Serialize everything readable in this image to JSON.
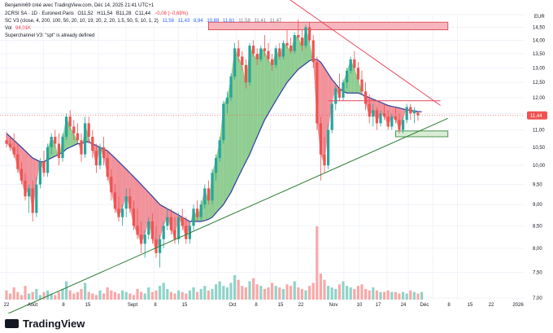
{
  "header": {
    "credit": "Benjamin69 créé avec TradingView.com, Déc 14, 2025 21:41 UTC+1",
    "symbol_line": "2CRSI SA · 1D · Euronext Paris",
    "ohlc": [
      "O11,52",
      "H11,54",
      "B11,28",
      "C11,44",
      "−0,08 (−0,69%)"
    ],
    "scv3_label": "SC V3 (close, 4, 200, 100, 50, 20, 10, 19, 20, 2, 20, 1.5, 50, 5, 10, 1, 2)",
    "scv3_values": [
      "11,56",
      "11,43",
      "8,94",
      "10,69",
      "11,61",
      "11,58",
      "11,41",
      "11,47"
    ],
    "vol_label": "Vol",
    "vol_value": "94,01K",
    "superchannel": "Superchannel V3: \"spt\" is already defined"
  },
  "currency": "EUR",
  "last_price_label": "11,44",
  "watermark": "TradingView",
  "colors": {
    "up": "#26a69a",
    "down": "#ef5350",
    "fill_up": "#7cc47f",
    "fill_down": "#ef7f8a",
    "ma_line": "#2e3fa0",
    "resistance_line": "#e8475b",
    "support_line": "#2e7d32",
    "zone_red": "#f7b6bd",
    "zone_green": "#d8edd3",
    "vol_up": "#8fd3c9",
    "vol_down": "#f7a9a8"
  },
  "chart_data": {
    "type": "candlestick",
    "y_axis": {
      "ticks": [
        "15,00",
        "14,50",
        "14,00",
        "13,50",
        "13,00",
        "12,50",
        "12,00",
        "11,50",
        "11,00",
        "10,50",
        "10,00",
        "9,50",
        "9,00",
        "8,50",
        "8,00",
        "7,50",
        "7,00"
      ],
      "min": 7.0,
      "max": 15.0,
      "scale": "log"
    },
    "x_axis": {
      "ticks": [
        "22",
        "Août",
        "8",
        "15",
        "Sept",
        "8",
        "15",
        "Oct",
        "8",
        "15",
        "22",
        "Nov",
        "10",
        "17",
        "24",
        "Déc",
        "8",
        "15",
        "22",
        "2026"
      ]
    },
    "candles": [
      {
        "o": 10.7,
        "h": 10.95,
        "l": 10.5,
        "c": 10.6
      },
      {
        "o": 10.6,
        "h": 10.8,
        "l": 10.4,
        "c": 10.5
      },
      {
        "o": 10.5,
        "h": 10.9,
        "l": 10.2,
        "c": 10.3
      },
      {
        "o": 10.3,
        "h": 10.6,
        "l": 9.8,
        "c": 9.9
      },
      {
        "o": 9.9,
        "h": 10.1,
        "l": 9.5,
        "c": 9.6
      },
      {
        "o": 9.6,
        "h": 9.8,
        "l": 9.1,
        "c": 9.2
      },
      {
        "o": 9.2,
        "h": 9.5,
        "l": 8.8,
        "c": 9.4
      },
      {
        "o": 9.4,
        "h": 9.6,
        "l": 8.6,
        "c": 8.8
      },
      {
        "o": 8.8,
        "h": 9.7,
        "l": 8.7,
        "c": 9.5
      },
      {
        "o": 9.5,
        "h": 10.2,
        "l": 9.4,
        "c": 10.1
      },
      {
        "o": 10.1,
        "h": 10.4,
        "l": 9.7,
        "c": 9.8
      },
      {
        "o": 9.8,
        "h": 10.6,
        "l": 9.7,
        "c": 10.5
      },
      {
        "o": 10.5,
        "h": 10.9,
        "l": 10.3,
        "c": 10.8
      },
      {
        "o": 10.8,
        "h": 11.0,
        "l": 10.5,
        "c": 10.6
      },
      {
        "o": 10.6,
        "h": 10.9,
        "l": 10.0,
        "c": 10.2
      },
      {
        "o": 10.2,
        "h": 10.9,
        "l": 10.1,
        "c": 10.8
      },
      {
        "o": 10.8,
        "h": 11.5,
        "l": 10.7,
        "c": 11.4
      },
      {
        "o": 11.4,
        "h": 11.6,
        "l": 11.0,
        "c": 11.1
      },
      {
        "o": 11.1,
        "h": 11.3,
        "l": 10.7,
        "c": 10.9
      },
      {
        "o": 10.9,
        "h": 11.2,
        "l": 10.6,
        "c": 10.7
      },
      {
        "o": 10.7,
        "h": 10.9,
        "l": 10.1,
        "c": 10.3
      },
      {
        "o": 10.3,
        "h": 11.4,
        "l": 10.2,
        "c": 11.2
      },
      {
        "o": 11.2,
        "h": 11.4,
        "l": 10.6,
        "c": 10.8
      },
      {
        "o": 10.8,
        "h": 11.0,
        "l": 10.2,
        "c": 10.4
      },
      {
        "o": 10.4,
        "h": 10.6,
        "l": 9.8,
        "c": 10.0
      },
      {
        "o": 10.0,
        "h": 10.6,
        "l": 9.9,
        "c": 10.5
      },
      {
        "o": 10.5,
        "h": 10.8,
        "l": 10.0,
        "c": 10.2
      },
      {
        "o": 10.2,
        "h": 10.4,
        "l": 9.6,
        "c": 9.7
      },
      {
        "o": 9.7,
        "h": 9.9,
        "l": 9.1,
        "c": 9.3
      },
      {
        "o": 9.3,
        "h": 9.5,
        "l": 8.8,
        "c": 8.9
      },
      {
        "o": 8.9,
        "h": 9.2,
        "l": 8.6,
        "c": 8.7
      },
      {
        "o": 8.7,
        "h": 9.0,
        "l": 8.5,
        "c": 8.9
      },
      {
        "o": 8.9,
        "h": 9.4,
        "l": 8.7,
        "c": 9.2
      },
      {
        "o": 9.2,
        "h": 9.4,
        "l": 8.8,
        "c": 8.9
      },
      {
        "o": 8.9,
        "h": 9.1,
        "l": 8.4,
        "c": 8.5
      },
      {
        "o": 8.5,
        "h": 8.9,
        "l": 8.2,
        "c": 8.3
      },
      {
        "o": 8.3,
        "h": 8.6,
        "l": 7.9,
        "c": 8.1
      },
      {
        "o": 8.1,
        "h": 8.4,
        "l": 7.8,
        "c": 8.3
      },
      {
        "o": 8.3,
        "h": 8.7,
        "l": 8.2,
        "c": 8.6
      },
      {
        "o": 8.6,
        "h": 8.8,
        "l": 8.1,
        "c": 8.2
      },
      {
        "o": 8.2,
        "h": 8.5,
        "l": 7.8,
        "c": 7.9
      },
      {
        "o": 7.9,
        "h": 8.3,
        "l": 7.6,
        "c": 8.2
      },
      {
        "o": 8.2,
        "h": 8.6,
        "l": 8.0,
        "c": 8.5
      },
      {
        "o": 8.5,
        "h": 8.9,
        "l": 8.4,
        "c": 8.7
      },
      {
        "o": 8.7,
        "h": 8.9,
        "l": 8.3,
        "c": 8.4
      },
      {
        "o": 8.4,
        "h": 8.7,
        "l": 8.1,
        "c": 8.2
      },
      {
        "o": 8.2,
        "h": 8.8,
        "l": 8.1,
        "c": 8.7
      },
      {
        "o": 8.7,
        "h": 8.9,
        "l": 8.4,
        "c": 8.5
      },
      {
        "o": 8.5,
        "h": 8.7,
        "l": 8.1,
        "c": 8.2
      },
      {
        "o": 8.2,
        "h": 8.6,
        "l": 8.1,
        "c": 8.5
      },
      {
        "o": 8.5,
        "h": 9.0,
        "l": 8.4,
        "c": 8.9
      },
      {
        "o": 8.9,
        "h": 9.1,
        "l": 8.6,
        "c": 8.7
      },
      {
        "o": 8.7,
        "h": 9.1,
        "l": 8.6,
        "c": 9.0
      },
      {
        "o": 9.0,
        "h": 9.5,
        "l": 8.9,
        "c": 9.4
      },
      {
        "o": 9.4,
        "h": 9.6,
        "l": 9.0,
        "c": 9.1
      },
      {
        "o": 9.1,
        "h": 9.9,
        "l": 9.0,
        "c": 9.8
      },
      {
        "o": 9.8,
        "h": 10.3,
        "l": 9.6,
        "c": 10.2
      },
      {
        "o": 10.2,
        "h": 10.8,
        "l": 10.1,
        "c": 10.7
      },
      {
        "o": 10.7,
        "h": 11.9,
        "l": 10.6,
        "c": 11.8
      },
      {
        "o": 11.8,
        "h": 12.2,
        "l": 11.5,
        "c": 12.0
      },
      {
        "o": 12.0,
        "h": 12.8,
        "l": 11.9,
        "c": 12.7
      },
      {
        "o": 12.7,
        "h": 13.9,
        "l": 12.6,
        "c": 13.7
      },
      {
        "o": 13.7,
        "h": 14.0,
        "l": 13.2,
        "c": 13.4
      },
      {
        "o": 13.4,
        "h": 13.6,
        "l": 12.9,
        "c": 13.1
      },
      {
        "o": 13.1,
        "h": 13.3,
        "l": 12.3,
        "c": 12.5
      },
      {
        "o": 12.5,
        "h": 13.9,
        "l": 12.4,
        "c": 13.8
      },
      {
        "o": 13.8,
        "h": 14.0,
        "l": 13.4,
        "c": 13.5
      },
      {
        "o": 13.5,
        "h": 13.7,
        "l": 13.1,
        "c": 13.3
      },
      {
        "o": 13.3,
        "h": 13.8,
        "l": 13.2,
        "c": 13.7
      },
      {
        "o": 13.7,
        "h": 14.2,
        "l": 13.4,
        "c": 13.6
      },
      {
        "o": 13.6,
        "h": 13.9,
        "l": 13.2,
        "c": 13.3
      },
      {
        "o": 13.3,
        "h": 13.5,
        "l": 12.9,
        "c": 13.1
      },
      {
        "o": 13.1,
        "h": 13.8,
        "l": 13.0,
        "c": 13.7
      },
      {
        "o": 13.7,
        "h": 13.9,
        "l": 13.3,
        "c": 13.4
      },
      {
        "o": 13.4,
        "h": 14.0,
        "l": 13.3,
        "c": 13.9
      },
      {
        "o": 13.9,
        "h": 14.4,
        "l": 13.7,
        "c": 13.8
      },
      {
        "o": 13.8,
        "h": 14.1,
        "l": 13.5,
        "c": 13.6
      },
      {
        "o": 13.6,
        "h": 14.3,
        "l": 13.5,
        "c": 14.2
      },
      {
        "o": 14.2,
        "h": 14.8,
        "l": 14.0,
        "c": 14.1
      },
      {
        "o": 14.1,
        "h": 14.4,
        "l": 13.6,
        "c": 13.8
      },
      {
        "o": 13.8,
        "h": 14.6,
        "l": 13.7,
        "c": 14.5
      },
      {
        "o": 14.5,
        "h": 14.7,
        "l": 13.9,
        "c": 14.0
      },
      {
        "o": 14.0,
        "h": 14.2,
        "l": 13.0,
        "c": 13.2
      },
      {
        "o": 13.2,
        "h": 13.4,
        "l": 11.0,
        "c": 11.2
      },
      {
        "o": 11.2,
        "h": 11.4,
        "l": 9.6,
        "c": 10.3
      },
      {
        "o": 10.3,
        "h": 10.8,
        "l": 9.8,
        "c": 10.0
      },
      {
        "o": 10.0,
        "h": 11.2,
        "l": 9.9,
        "c": 11.0
      },
      {
        "o": 11.0,
        "h": 11.9,
        "l": 10.9,
        "c": 11.8
      },
      {
        "o": 11.8,
        "h": 12.4,
        "l": 11.6,
        "c": 12.3
      },
      {
        "o": 12.3,
        "h": 12.8,
        "l": 11.9,
        "c": 12.0
      },
      {
        "o": 12.0,
        "h": 12.6,
        "l": 11.9,
        "c": 12.5
      },
      {
        "o": 12.5,
        "h": 13.0,
        "l": 12.3,
        "c": 12.9
      },
      {
        "o": 12.9,
        "h": 13.4,
        "l": 12.8,
        "c": 13.3
      },
      {
        "o": 13.3,
        "h": 13.6,
        "l": 12.9,
        "c": 13.0
      },
      {
        "o": 13.0,
        "h": 13.2,
        "l": 12.5,
        "c": 12.6
      },
      {
        "o": 12.6,
        "h": 12.9,
        "l": 12.1,
        "c": 12.2
      },
      {
        "o": 12.2,
        "h": 12.5,
        "l": 11.6,
        "c": 11.8
      },
      {
        "o": 11.8,
        "h": 12.1,
        "l": 11.2,
        "c": 11.4
      },
      {
        "o": 11.4,
        "h": 11.8,
        "l": 11.1,
        "c": 11.6
      },
      {
        "o": 11.6,
        "h": 11.7,
        "l": 11.0,
        "c": 11.2
      },
      {
        "o": 11.2,
        "h": 11.6,
        "l": 11.1,
        "c": 11.5
      },
      {
        "o": 11.5,
        "h": 11.8,
        "l": 11.3,
        "c": 11.4
      },
      {
        "o": 11.4,
        "h": 11.6,
        "l": 11.0,
        "c": 11.1
      },
      {
        "o": 11.1,
        "h": 11.5,
        "l": 11.0,
        "c": 11.4
      },
      {
        "o": 11.4,
        "h": 11.7,
        "l": 11.2,
        "c": 11.3
      },
      {
        "o": 11.3,
        "h": 11.5,
        "l": 10.9,
        "c": 11.0
      },
      {
        "o": 11.0,
        "h": 11.4,
        "l": 10.9,
        "c": 11.3
      },
      {
        "o": 11.3,
        "h": 11.8,
        "l": 11.2,
        "c": 11.7
      },
      {
        "o": 11.7,
        "h": 11.8,
        "l": 11.3,
        "c": 11.5
      },
      {
        "o": 11.5,
        "h": 11.7,
        "l": 11.2,
        "c": 11.6
      },
      {
        "o": 11.52,
        "h": 11.54,
        "l": 11.28,
        "c": 11.44
      }
    ],
    "volume": [
      6,
      4,
      8,
      5,
      3,
      9,
      4,
      5,
      7,
      3,
      5,
      6,
      4,
      3,
      5,
      7,
      12,
      6,
      4,
      5,
      7,
      11,
      5,
      4,
      3,
      6,
      4,
      8,
      6,
      5,
      4,
      6,
      5,
      4,
      3,
      7,
      5,
      4,
      8,
      5,
      6,
      9,
      11,
      7,
      5,
      4,
      6,
      5,
      4,
      6,
      8,
      5,
      7,
      9,
      6,
      7,
      10,
      12,
      9,
      8,
      11,
      16,
      13,
      9,
      8,
      12,
      14,
      10,
      9,
      7,
      8,
      11,
      9,
      8,
      7,
      10,
      9,
      12,
      8,
      7,
      6,
      9,
      11,
      48,
      17,
      13,
      9,
      8,
      7,
      10,
      12,
      9,
      8,
      7,
      9,
      10,
      7,
      6,
      8,
      6,
      5,
      5,
      6,
      5,
      5,
      4,
      5,
      4,
      6,
      5,
      4,
      5
    ],
    "ma_line": [
      10.9,
      10.8,
      10.7,
      10.6,
      10.5,
      10.4,
      10.3,
      10.2,
      10.15,
      10.1,
      10.1,
      10.15,
      10.2,
      10.25,
      10.3,
      10.35,
      10.45,
      10.5,
      10.55,
      10.6,
      10.6,
      10.65,
      10.65,
      10.6,
      10.55,
      10.5,
      10.45,
      10.4,
      10.3,
      10.2,
      10.1,
      10.0,
      9.9,
      9.8,
      9.7,
      9.6,
      9.5,
      9.4,
      9.3,
      9.2,
      9.1,
      9.0,
      8.95,
      8.9,
      8.85,
      8.8,
      8.75,
      8.7,
      8.65,
      8.6,
      8.6,
      8.6,
      8.6,
      8.62,
      8.65,
      8.7,
      8.8,
      8.9,
      9.0,
      9.15,
      9.3,
      9.5,
      9.7,
      9.9,
      10.1,
      10.3,
      10.55,
      10.8,
      11.05,
      11.3,
      11.5,
      11.7,
      11.9,
      12.1,
      12.3,
      12.5,
      12.65,
      12.8,
      12.95,
      13.05,
      13.15,
      13.25,
      13.3,
      13.3,
      13.2,
      13.0,
      12.8,
      12.6,
      12.45,
      12.3,
      12.2,
      12.15,
      12.15,
      12.15,
      12.15,
      12.1,
      12.05,
      12.0,
      11.95,
      11.9,
      11.85,
      11.8,
      11.75,
      11.72,
      11.7,
      11.67,
      11.64,
      11.61,
      11.6,
      11.58,
      11.56,
      11.55
    ],
    "resistance_line": {
      "from": {
        "bar": 75,
        "price": 15.7
      },
      "to": {
        "bar": 116,
        "price": 11.75
      }
    },
    "support_line": {
      "from": {
        "bar": 0,
        "price": 6.7
      },
      "to": {
        "bar": 118,
        "price": 11.35
      }
    },
    "resistance_zone": {
      "from_bar": 54,
      "to_bar": 118,
      "low": 14.4,
      "high": 14.7
    },
    "support_zone": {
      "from_bar": 104,
      "to_bar": 118,
      "low": 10.8,
      "high": 10.97
    },
    "level_line": 11.9
  }
}
